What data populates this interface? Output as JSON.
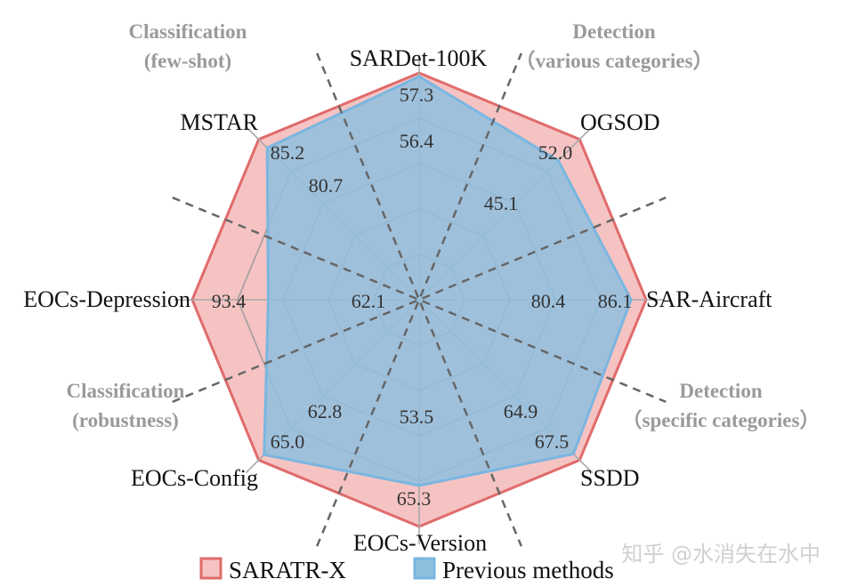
{
  "chart_data": {
    "type": "radar",
    "axes": [
      "SARDet-100K",
      "OGSOD",
      "SAR-Aircraft",
      "SSDD",
      "EOCs-Version",
      "EOCs-Config",
      "EOCs-Depression",
      "MSTAR"
    ],
    "series": [
      {
        "name": "SARATR-X",
        "values": [
          57.3,
          52.0,
          86.1,
          67.5,
          65.3,
          65.0,
          93.4,
          85.2
        ],
        "color": "#f6c3c3",
        "stroke": "#e06b6b"
      },
      {
        "name": "Previous methods",
        "values": [
          56.4,
          45.1,
          80.4,
          64.9,
          53.5,
          62.8,
          62.1,
          80.7
        ],
        "color": "#8fbfdf",
        "stroke": "#7ab6e0"
      }
    ],
    "value_labels": {
      "outer": [
        "57.3",
        "52.0",
        "86.1",
        "67.5",
        "65.3",
        "65.0",
        "93.4",
        "85.2"
      ],
      "inner": [
        "56.4",
        "45.1",
        "80.4",
        "64.9",
        "53.5",
        "62.8",
        "62.1",
        "80.7"
      ]
    },
    "groups": [
      {
        "line1": "Classification",
        "line2": "(few-shot)"
      },
      {
        "line1": "Detection",
        "line2": "（various categories）"
      },
      {
        "line1": "Detection",
        "line2": "（specific categories）"
      },
      {
        "line1": "Classification",
        "line2": "(robustness)"
      }
    ]
  },
  "watermark": "知乎 @水消失在水中"
}
